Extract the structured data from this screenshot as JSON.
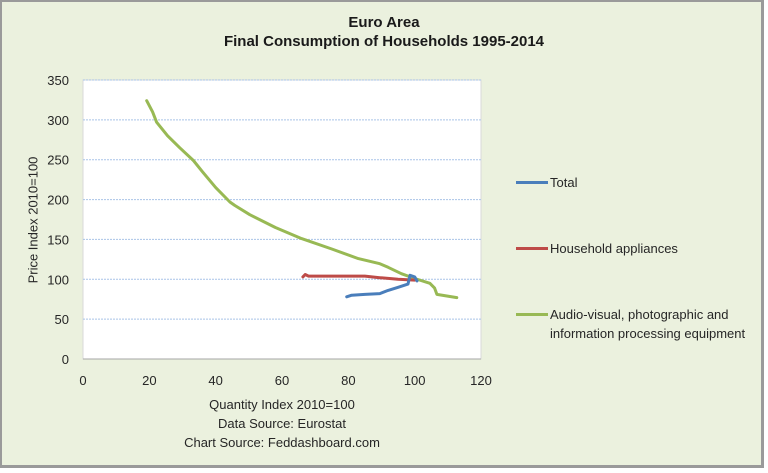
{
  "chart_data": {
    "type": "line",
    "title": "Euro Area",
    "subtitle": "Final Consumption  of Households 1995-2014",
    "xlabel": "Quantity Index 2010=100",
    "ylabel": "Price Index 2010=100",
    "xlim": [
      0,
      120
    ],
    "ylim": [
      0,
      350
    ],
    "xticks": [
      0,
      20,
      40,
      60,
      80,
      100,
      120
    ],
    "yticks": [
      0,
      50,
      100,
      150,
      200,
      250,
      300,
      350
    ],
    "grid": "horizontal",
    "legend_position": "right",
    "annotations": [
      "Data Source:  Eurostat",
      "Chart Source: Feddashboard.com"
    ],
    "series": [
      {
        "name": "Total",
        "color": "#4a7ebb",
        "points": [
          [
            79.5,
            78
          ],
          [
            81,
            80
          ],
          [
            85,
            81
          ],
          [
            89.5,
            82
          ],
          [
            92,
            86
          ],
          [
            95,
            90
          ],
          [
            98,
            94
          ],
          [
            98.6,
            105
          ],
          [
            100,
            103
          ],
          [
            100.7,
            98
          ]
        ]
      },
      {
        "name": "Household appliances",
        "color": "#be4b48",
        "points": [
          [
            66.3,
            103
          ],
          [
            67,
            106
          ],
          [
            68,
            104
          ],
          [
            75,
            104
          ],
          [
            80,
            104
          ],
          [
            85,
            104
          ],
          [
            89.5,
            102
          ],
          [
            95,
            100
          ],
          [
            100,
            99
          ]
        ]
      },
      {
        "name": "Audio-visual, photographic and information processing equipment",
        "color": "#98b954",
        "points": [
          [
            19.2,
            324
          ],
          [
            21,
            310
          ],
          [
            22.2,
            297
          ],
          [
            25.5,
            280
          ],
          [
            29.2,
            265
          ],
          [
            33.3,
            249
          ],
          [
            36,
            235
          ],
          [
            40,
            215
          ],
          [
            44.3,
            197
          ],
          [
            45.8,
            192.5
          ],
          [
            50.3,
            181
          ],
          [
            58,
            165
          ],
          [
            65.9,
            151
          ],
          [
            75,
            138
          ],
          [
            83,
            126
          ],
          [
            89.5,
            119.6
          ],
          [
            92,
            115
          ],
          [
            96,
            107
          ],
          [
            100,
            101
          ],
          [
            104.6,
            95
          ],
          [
            106,
            89
          ],
          [
            106.7,
            81
          ],
          [
            112.7,
            77
          ]
        ]
      }
    ]
  },
  "legend": [
    {
      "label": "Total",
      "color": "#4a7ebb"
    },
    {
      "label": "Household appliances",
      "color": "#be4b48"
    },
    {
      "label": "Audio-visual, photographic and information processing equipment",
      "color": "#98b954"
    }
  ]
}
